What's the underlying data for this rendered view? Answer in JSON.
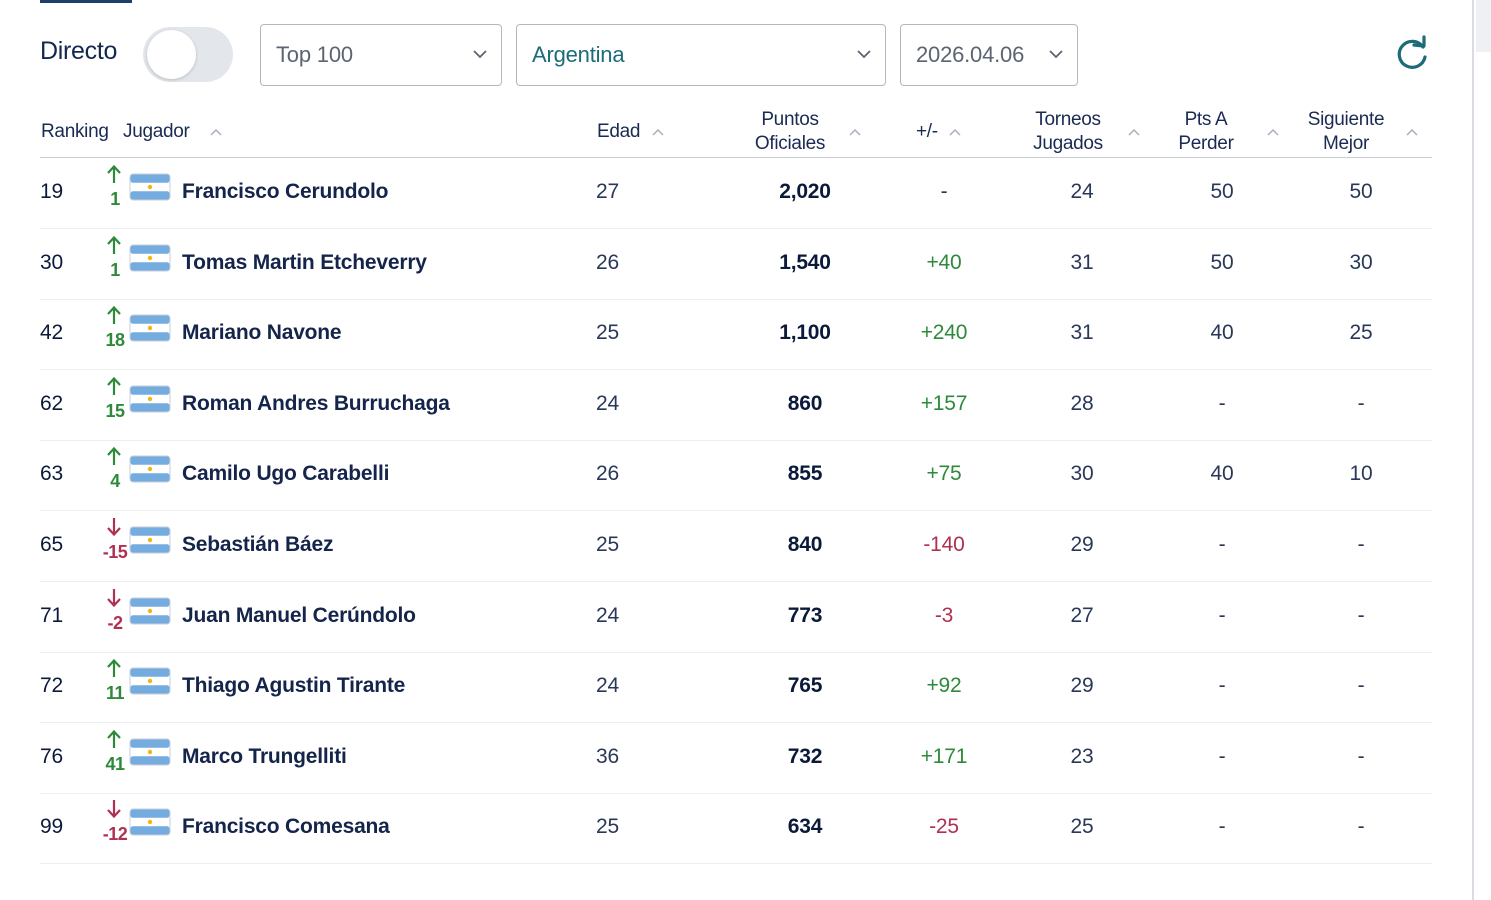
{
  "controls": {
    "live_label": "Directo",
    "live_on": false,
    "top_select": "Top 100",
    "country_select": "Argentina",
    "date_select": "2026.04.06"
  },
  "colors": {
    "up": "#2e8a3a",
    "down": "#b03052",
    "teal": "#1c6b78",
    "navy": "#14284f"
  },
  "headers": {
    "ranking": "Ranking",
    "player": "Jugador",
    "age": "Edad",
    "points_1": "Puntos",
    "points_2": "Oficiales",
    "diff": "+/-",
    "played_1": "Torneos",
    "played_2": "Jugados",
    "drop_1": "Pts A",
    "drop_2": "Perder",
    "next_1": "Siguiente",
    "next_2": "Mejor"
  },
  "rows": [
    {
      "rank": "19",
      "dir": "up",
      "move": "1",
      "name": "Francisco Cerundolo",
      "age": "27",
      "points": "2,020",
      "diff": "-",
      "diff_type": "neu",
      "played": "24",
      "drop": "50",
      "next": "50"
    },
    {
      "rank": "30",
      "dir": "up",
      "move": "1",
      "name": "Tomas Martin Etcheverry",
      "age": "26",
      "points": "1,540",
      "diff": "+40",
      "diff_type": "pos",
      "played": "31",
      "drop": "50",
      "next": "30"
    },
    {
      "rank": "42",
      "dir": "up",
      "move": "18",
      "name": "Mariano Navone",
      "age": "25",
      "points": "1,100",
      "diff": "+240",
      "diff_type": "pos",
      "played": "31",
      "drop": "40",
      "next": "25"
    },
    {
      "rank": "62",
      "dir": "up",
      "move": "15",
      "name": "Roman Andres Burruchaga",
      "age": "24",
      "points": "860",
      "diff": "+157",
      "diff_type": "pos",
      "played": "28",
      "drop": "-",
      "next": "-"
    },
    {
      "rank": "63",
      "dir": "up",
      "move": "4",
      "name": "Camilo Ugo Carabelli",
      "age": "26",
      "points": "855",
      "diff": "+75",
      "diff_type": "pos",
      "played": "30",
      "drop": "40",
      "next": "10"
    },
    {
      "rank": "65",
      "dir": "down",
      "move": "-15",
      "name": "Sebastián Báez",
      "age": "25",
      "points": "840",
      "diff": "-140",
      "diff_type": "neg",
      "played": "29",
      "drop": "-",
      "next": "-"
    },
    {
      "rank": "71",
      "dir": "down",
      "move": "-2",
      "name": "Juan Manuel Cerúndolo",
      "age": "24",
      "points": "773",
      "diff": "-3",
      "diff_type": "neg",
      "played": "27",
      "drop": "-",
      "next": "-"
    },
    {
      "rank": "72",
      "dir": "up",
      "move": "11",
      "name": "Thiago Agustin Tirante",
      "age": "24",
      "points": "765",
      "diff": "+92",
      "diff_type": "pos",
      "played": "29",
      "drop": "-",
      "next": "-"
    },
    {
      "rank": "76",
      "dir": "up",
      "move": "41",
      "name": "Marco Trungelliti",
      "age": "36",
      "points": "732",
      "diff": "+171",
      "diff_type": "pos",
      "played": "23",
      "drop": "-",
      "next": "-"
    },
    {
      "rank": "99",
      "dir": "down",
      "move": "-12",
      "name": "Francisco Comesana",
      "age": "25",
      "points": "634",
      "diff": "-25",
      "diff_type": "neg",
      "played": "25",
      "drop": "-",
      "next": "-"
    }
  ]
}
